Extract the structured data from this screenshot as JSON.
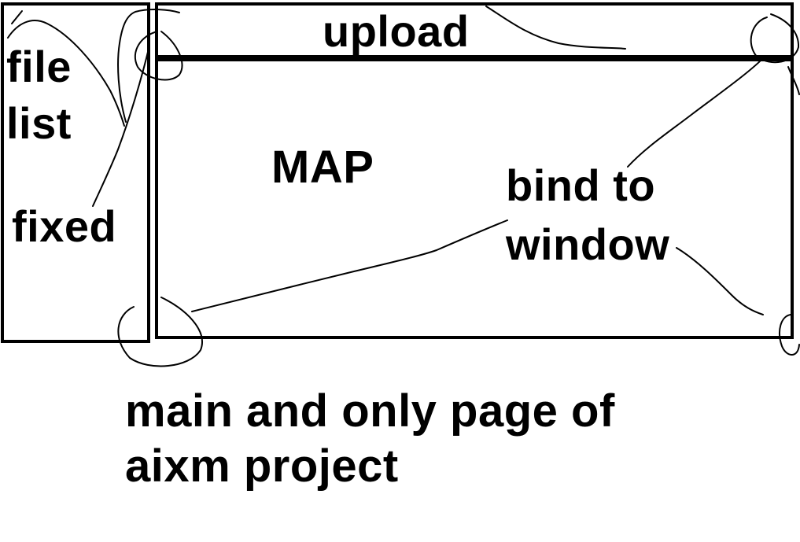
{
  "panels": {
    "sidebar": {
      "line1": "file",
      "line2": "list",
      "note": "fixed"
    },
    "top_bar": {
      "label": "upload"
    },
    "map_area": {
      "label": "MAP",
      "note_line1": "bind to",
      "note_line2": "window"
    }
  },
  "caption": {
    "line1": "main and only page of",
    "line2": "aixm project"
  },
  "colors": {
    "ink": "#000000",
    "paper": "#ffffff"
  }
}
